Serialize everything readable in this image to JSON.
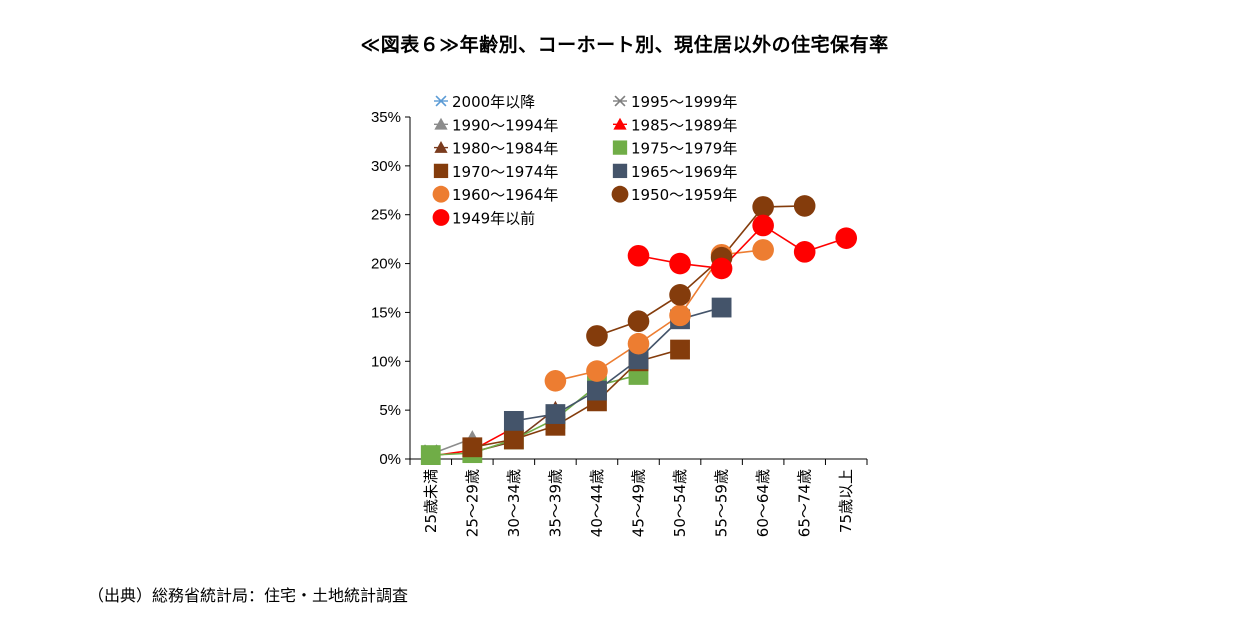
{
  "title": "≪図表６≫年齢別、コーホート別、現住居以外の住宅保有率",
  "source": "（出典）総務省統計局：住宅・土地統計調査",
  "chart_data": {
    "type": "line",
    "title": "≪図表６≫年齢別、コーホート別、現住居以外の住宅保有率",
    "xlabel": "",
    "ylabel": "",
    "ylim": [
      0,
      35
    ],
    "y_ticks": [
      "0%",
      "5%",
      "10%",
      "15%",
      "20%",
      "25%",
      "30%",
      "35%"
    ],
    "categories": [
      "25歳未満",
      "25～29歳",
      "30～34歳",
      "35～39歳",
      "40～44歳",
      "45～49歳",
      "50～54歳",
      "55～59歳",
      "60～64歳",
      "65～74歳",
      "75歳以上"
    ],
    "legend_position": "top-left",
    "grid": false,
    "series": [
      {
        "name": "2000年以降",
        "marker": "x",
        "color": "#5b9bd5",
        "values": [
          0.3,
          null,
          null,
          null,
          null,
          null,
          null,
          null,
          null,
          null,
          null
        ]
      },
      {
        "name": "1995～1999年",
        "marker": "x",
        "color": "#7f7f7f",
        "values": [
          0.8,
          null,
          null,
          null,
          null,
          null,
          null,
          null,
          null,
          null,
          null
        ]
      },
      {
        "name": "1990～1994年",
        "marker": "triangle",
        "color": "#8c8c8c",
        "values": [
          0.5,
          2.1,
          null,
          null,
          null,
          null,
          null,
          null,
          null,
          null,
          null
        ]
      },
      {
        "name": "1985～1989年",
        "marker": "triangle",
        "color": "#ff0000",
        "values": [
          0.3,
          0.9,
          3.2,
          null,
          null,
          null,
          null,
          null,
          null,
          null,
          null
        ]
      },
      {
        "name": "1980～1984年",
        "marker": "triangle",
        "color": "#7a3b1e",
        "values": [
          null,
          0.7,
          1.8,
          5.1,
          null,
          null,
          null,
          null,
          null,
          null,
          null
        ]
      },
      {
        "name": "1975～1979年",
        "marker": "square",
        "color": "#70ad47",
        "values": [
          0.4,
          0.6,
          2.0,
          4.1,
          7.5,
          8.6,
          null,
          null,
          null,
          null,
          null
        ]
      },
      {
        "name": "1970～1974年",
        "marker": "square",
        "color": "#843c0c",
        "values": [
          null,
          1.2,
          2.0,
          3.4,
          5.9,
          10.0,
          11.2,
          null,
          null,
          null,
          null
        ]
      },
      {
        "name": "1965～1969年",
        "marker": "square",
        "color": "#44546a",
        "values": [
          null,
          null,
          3.9,
          4.6,
          7.0,
          10.2,
          14.3,
          15.5,
          null,
          null,
          null
        ]
      },
      {
        "name": "1960～1964年",
        "marker": "circle",
        "color": "#ed7d31",
        "values": [
          null,
          null,
          null,
          8.0,
          9.0,
          11.8,
          14.7,
          20.9,
          21.4,
          null,
          null
        ]
      },
      {
        "name": "1950～1959年",
        "marker": "circle",
        "color": "#843c0c",
        "values": [
          null,
          null,
          null,
          null,
          12.6,
          14.1,
          16.8,
          20.6,
          25.8,
          25.9,
          null
        ]
      },
      {
        "name": "1949年以前",
        "marker": "circle",
        "color": "#ff0000",
        "values": [
          null,
          null,
          null,
          null,
          null,
          20.8,
          20.0,
          19.5,
          23.9,
          21.2,
          22.6
        ]
      }
    ]
  }
}
